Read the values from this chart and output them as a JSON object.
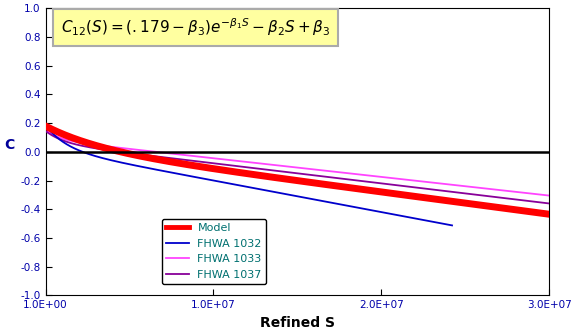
{
  "xlabel": "Refined S",
  "ylabel": "C",
  "xlim": [
    0,
    30000000.0
  ],
  "ylim": [
    -1.0,
    1.0
  ],
  "yticks": [
    -1.0,
    -0.8,
    -0.6,
    -0.4,
    -0.2,
    0.0,
    0.2,
    0.4,
    0.6,
    0.8,
    1.0
  ],
  "model_color": "#FF0000",
  "fhwa1032_color": "#0000CC",
  "fhwa1033_color": "#FF44FF",
  "fhwa1037_color": "#880099",
  "background_color": "#FFFFFF",
  "plot_bg_color": "#FFFFFF",
  "annotation_box_color": "#FFFFA0",
  "model_lw": 5,
  "data_lw": 1.3,
  "legend_labels": [
    "Model",
    "FHWA 1032",
    "FHWA 1033",
    "FHWA 1037"
  ]
}
